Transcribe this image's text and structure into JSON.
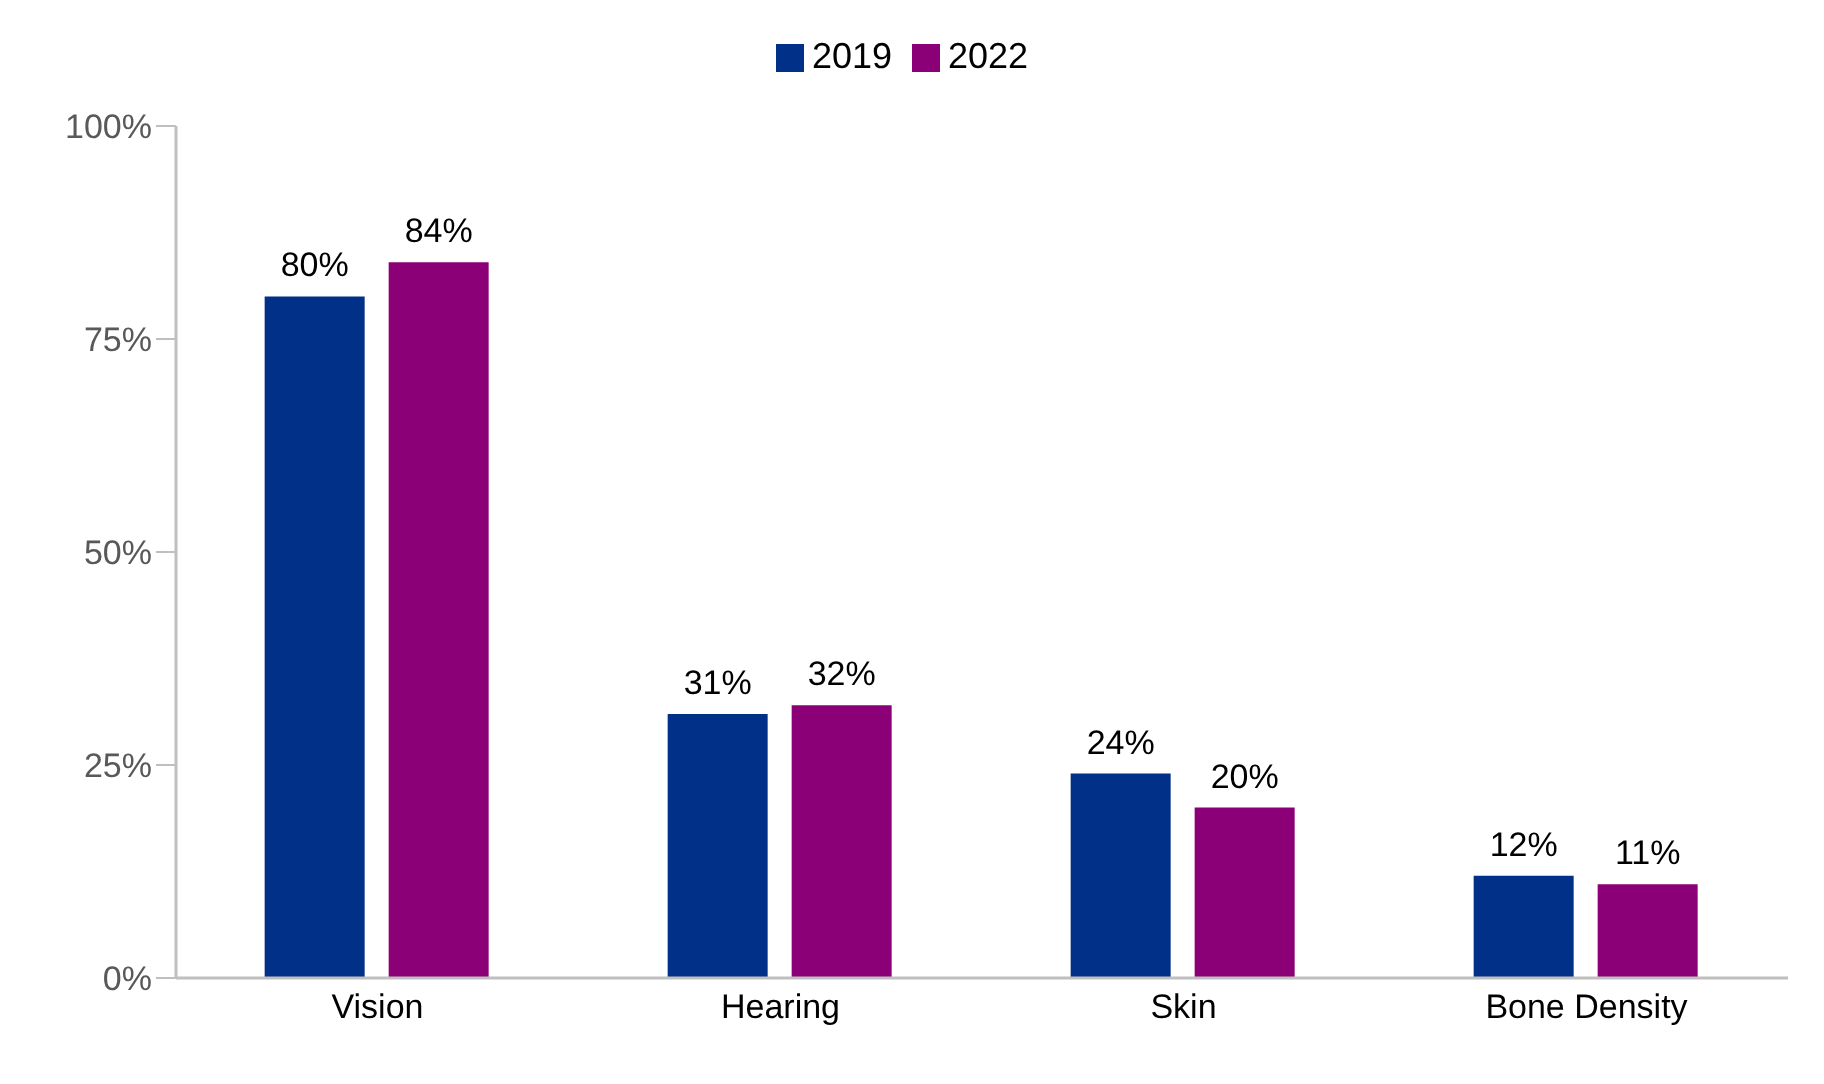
{
  "chart_data": {
    "type": "bar",
    "categories": [
      "Vision",
      "Hearing",
      "Skin",
      "Bone Density"
    ],
    "series": [
      {
        "name": "2019",
        "color": "#003087",
        "values": [
          80,
          31,
          24,
          12
        ],
        "value_labels": [
          "80%",
          "31%",
          "24%",
          "12%"
        ]
      },
      {
        "name": "2022",
        "color": "#8b0077",
        "values": [
          84,
          32,
          20,
          11
        ],
        "value_labels": [
          "84%",
          "32%",
          "20%",
          "11%"
        ]
      }
    ],
    "ylim": [
      0,
      100
    ],
    "yticks": [
      {
        "value": 0,
        "label": "0%"
      },
      {
        "value": 25,
        "label": "25%"
      },
      {
        "value": 50,
        "label": "50%"
      },
      {
        "value": 75,
        "label": "75%"
      },
      {
        "value": 100,
        "label": "100%"
      }
    ],
    "grid": false,
    "legend": "top"
  }
}
